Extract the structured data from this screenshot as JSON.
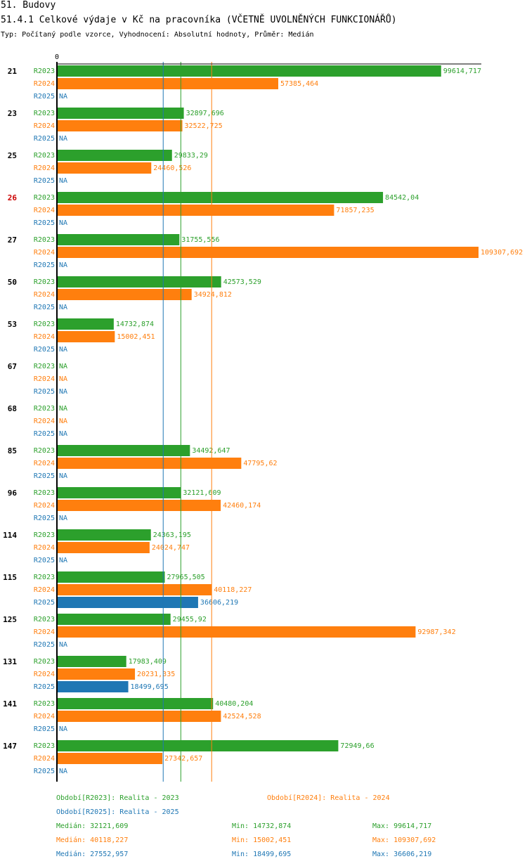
{
  "header": {
    "section": "51. Budovy",
    "title": "51.4.1 Celkové výdaje v Kč na pracovníka (VČETNĚ UVOLNĚNÝCH FUNKCIONÁŘŮ)",
    "info": "Typ: Počítaný podle vzorce, Vyhodnocení: Absolutní hodnoty, Průměr: Medián"
  },
  "colors": {
    "R2023": "#2ca02c",
    "R2024": "#ff7f0e",
    "R2025": "#1f77b4",
    "highlight": "#cc0000"
  },
  "chart_data": {
    "type": "bar",
    "orientation": "horizontal",
    "axis_zero_label": "0",
    "xlim": [
      0,
      109307.692
    ],
    "categories": [
      "21",
      "23",
      "25",
      "26",
      "27",
      "50",
      "53",
      "67",
      "68",
      "85",
      "96",
      "114",
      "115",
      "125",
      "131",
      "141",
      "147"
    ],
    "highlighted_category": "26",
    "series": [
      {
        "name": "R2023",
        "values": [
          99614.717,
          32897.696,
          29833.29,
          84542.04,
          31755.556,
          42573.529,
          14732.874,
          null,
          null,
          34492.647,
          32121.609,
          24363.195,
          27965.505,
          29455.92,
          17983.409,
          40480.204,
          72949.66
        ],
        "labels": [
          "99614,717",
          "32897,696",
          "29833,29",
          "84542,04",
          "31755,556",
          "42573,529",
          "14732,874",
          "NA",
          "NA",
          "34492,647",
          "32121,609",
          "24363,195",
          "27965,505",
          "29455,92",
          "17983,409",
          "40480,204",
          "72949,66"
        ]
      },
      {
        "name": "R2024",
        "values": [
          57385.464,
          32522.725,
          24460.526,
          71857.235,
          109307.692,
          34924.812,
          15002.451,
          null,
          null,
          47795.62,
          42460.174,
          24024.747,
          40118.227,
          92987.342,
          20231.335,
          42524.528,
          27342.657
        ],
        "labels": [
          "57385,464",
          "32522,725",
          "24460,526",
          "71857,235",
          "109307,692",
          "34924,812",
          "15002,451",
          "NA",
          "NA",
          "47795,62",
          "42460,174",
          "24024,747",
          "40118,227",
          "92987,342",
          "20231,335",
          "42524,528",
          "27342,657"
        ]
      },
      {
        "name": "R2025",
        "values": [
          null,
          null,
          null,
          null,
          null,
          null,
          null,
          null,
          null,
          null,
          null,
          null,
          36606.219,
          null,
          18499.695,
          null,
          null
        ],
        "labels": [
          "NA",
          "NA",
          "NA",
          "NA",
          "NA",
          "NA",
          "NA",
          "NA",
          "NA",
          "NA",
          "NA",
          "NA",
          "36606,219",
          "NA",
          "18499,695",
          "NA",
          "NA"
        ]
      }
    ],
    "reference_lines": [
      {
        "series": "R2023",
        "statistic": "median",
        "value": 32121.609
      },
      {
        "series": "R2024",
        "statistic": "median",
        "value": 40118.227
      },
      {
        "series": "R2025",
        "statistic": "median",
        "value": 27552.957
      }
    ]
  },
  "legend": {
    "periods": [
      {
        "series": "R2023",
        "label": "Období[R2023]: Realita - 2023"
      },
      {
        "series": "R2024",
        "label": "Období[R2024]: Realita - 2024"
      },
      {
        "series": "R2025",
        "label": "Období[R2025]: Realita - 2025"
      }
    ],
    "stats": [
      {
        "series": "R2023",
        "median": "Medián: 32121,609",
        "min": "Min: 14732,874",
        "max": "Max: 99614,717"
      },
      {
        "series": "R2024",
        "median": "Medián: 40118,227",
        "min": "Min: 15002,451",
        "max": "Max: 109307,692"
      },
      {
        "series": "R2025",
        "median": "Medián: 27552,957",
        "min": "Min: 18499,695",
        "max": "Max: 36606,219"
      }
    ]
  }
}
